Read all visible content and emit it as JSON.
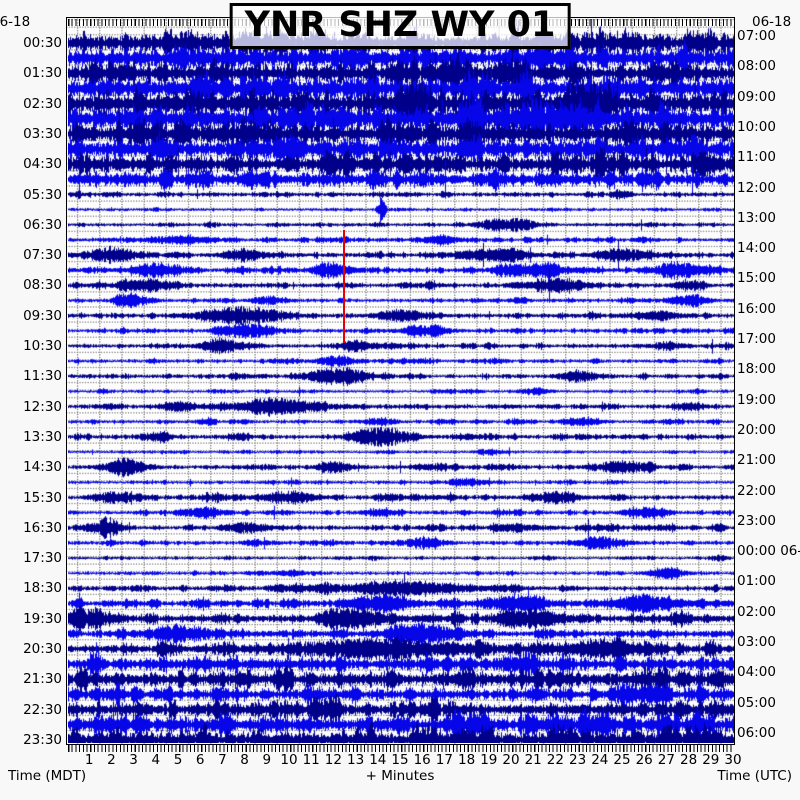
{
  "title": "YNR SHZ WY 01",
  "dates": {
    "top_left": "06-18",
    "top_right": "06-18"
  },
  "footer": {
    "left": "Time (MDT)",
    "center": "+ Minutes",
    "right": "Time (UTC)"
  },
  "left_time_labels": [
    "00:30",
    "01:30",
    "02:30",
    "03:30",
    "04:30",
    "05:30",
    "06:30",
    "07:30",
    "08:30",
    "09:30",
    "10:30",
    "11:30",
    "12:30",
    "13:30",
    "14:30",
    "15:30",
    "16:30",
    "17:30",
    "18:30",
    "19:30",
    "20:30",
    "21:30",
    "22:30",
    "23:30"
  ],
  "right_time_labels": [
    "07:00",
    "08:00",
    "09:00",
    "10:00",
    "11:00",
    "12:00",
    "13:00",
    "14:00",
    "15:00",
    "16:00",
    "17:00",
    "18:00",
    "19:00",
    "20:00",
    "21:00",
    "22:00",
    "23:00",
    "00:00 06-19",
    "01:00",
    "02:00",
    "03:00",
    "04:00",
    "05:00",
    "06:00"
  ],
  "minute_labels": [
    "1",
    "2",
    "3",
    "4",
    "5",
    "6",
    "7",
    "8",
    "9",
    "10",
    "11",
    "12",
    "13",
    "14",
    "15",
    "16",
    "17",
    "18",
    "19",
    "20",
    "21",
    "22",
    "23",
    "24",
    "25",
    "26",
    "27",
    "28",
    "29",
    "30"
  ],
  "colors": {
    "trace_dark": "#00008B",
    "trace_bright": "#0606E8",
    "event_marker": "#e60000",
    "grid_dots": "#9c9c9c"
  },
  "chart_data": {
    "type": "line",
    "subtype": "helicorder-seismogram",
    "station": "YNR SHZ WY 01",
    "minutes_per_line": 30,
    "x_axis": {
      "label": "+ Minutes",
      "range": [
        0,
        30
      ],
      "ticks_every_min": 1,
      "minor_ticks_sec": 10
    },
    "time_axis_left": {
      "label": "Time (MDT)",
      "start": "00:30",
      "end": "23:30",
      "date": "06-18"
    },
    "time_axis_right": {
      "label": "Time (UTC)",
      "start": "07:00",
      "end": "06:00",
      "rollover": "00:00 06-19"
    },
    "event_marker": {
      "minute": 12.45,
      "from_line": 13,
      "to_line": 20
    },
    "lines": [
      {
        "amp": 12,
        "bursts": []
      },
      {
        "amp": 13,
        "bursts": []
      },
      {
        "amp": 12,
        "bursts": []
      },
      {
        "amp": 13,
        "bursts": []
      },
      {
        "amp": 15,
        "bursts": []
      },
      {
        "amp": 15,
        "bursts": []
      },
      {
        "amp": 13,
        "bursts": []
      },
      {
        "amp": 12,
        "bursts": []
      },
      {
        "amp": 11,
        "bursts": []
      },
      {
        "amp": 9,
        "bursts": []
      },
      {
        "amp": 2.8,
        "bursts": []
      },
      {
        "amp": 1.8,
        "bursts": [
          [
            14.1,
            0.12,
            13
          ]
        ]
      },
      {
        "amp": 2.2,
        "bursts": [
          [
            19.3,
            0.6,
            6
          ],
          [
            20.5,
            0.4,
            5
          ]
        ]
      },
      {
        "amp": 2.6,
        "bursts": [
          [
            16.8,
            0.5,
            5
          ],
          [
            5,
            1,
            4
          ]
        ]
      },
      {
        "amp": 3.2,
        "bursts": [
          [
            2,
            0.8,
            7
          ],
          [
            8,
            0.7,
            6
          ],
          [
            19,
            1.2,
            5
          ],
          [
            25,
            0.8,
            6
          ]
        ]
      },
      {
        "amp": 3.6,
        "bursts": [
          [
            4,
            0.8,
            7
          ],
          [
            12,
            0.6,
            5
          ],
          [
            21,
            1,
            6
          ],
          [
            27.5,
            0.7,
            7
          ]
        ]
      },
      {
        "amp": 3.0,
        "bursts": [
          [
            3.5,
            0.7,
            6
          ],
          [
            22,
            1,
            7
          ],
          [
            28,
            0.5,
            5
          ]
        ]
      },
      {
        "amp": 2.6,
        "bursts": [
          [
            3,
            0.6,
            5
          ],
          [
            9,
            0.5,
            4
          ],
          [
            28,
            0.6,
            5
          ]
        ]
      },
      {
        "amp": 3.0,
        "bursts": [
          [
            7.8,
            1.4,
            8
          ],
          [
            15,
            0.8,
            6
          ],
          [
            26.5,
            0.6,
            5
          ]
        ]
      },
      {
        "amp": 2.6,
        "bursts": [
          [
            8,
            0.8,
            7
          ],
          [
            16,
            0.7,
            5
          ]
        ]
      },
      {
        "amp": 2.8,
        "bursts": [
          [
            7,
            0.8,
            6
          ],
          [
            13,
            0.6,
            5
          ],
          [
            27,
            0.5,
            4
          ]
        ]
      },
      {
        "amp": 2.2,
        "bursts": [
          [
            12,
            0.7,
            5
          ]
        ]
      },
      {
        "amp": 2.6,
        "bursts": [
          [
            12.2,
            0.9,
            8
          ],
          [
            23,
            0.6,
            5
          ]
        ]
      },
      {
        "amp": 1.8,
        "bursts": [
          [
            21,
            0.5,
            3
          ]
        ]
      },
      {
        "amp": 2.6,
        "bursts": [
          [
            9.5,
            1.6,
            7
          ],
          [
            5,
            0.6,
            5
          ]
        ]
      },
      {
        "amp": 2.2,
        "bursts": [
          [
            23,
            0.6,
            4
          ],
          [
            14,
            0.5,
            4
          ]
        ]
      },
      {
        "amp": 3.0,
        "bursts": [
          [
            14.2,
            0.9,
            9
          ],
          [
            4,
            0.5,
            4
          ]
        ]
      },
      {
        "amp": 1.8,
        "bursts": [
          [
            19,
            0.4,
            3
          ]
        ]
      },
      {
        "amp": 2.6,
        "bursts": [
          [
            2.6,
            0.7,
            7
          ],
          [
            12,
            0.6,
            5
          ],
          [
            25,
            0.8,
            6
          ]
        ]
      },
      {
        "amp": 2.2,
        "bursts": [
          [
            18,
            0.6,
            4
          ]
        ]
      },
      {
        "amp": 3.0,
        "bursts": [
          [
            2,
            0.6,
            5
          ],
          [
            10,
            0.8,
            6
          ],
          [
            22,
            0.7,
            5
          ]
        ]
      },
      {
        "amp": 2.6,
        "bursts": [
          [
            6,
            0.6,
            5
          ],
          [
            14,
            0.5,
            4
          ],
          [
            26,
            0.7,
            5
          ]
        ]
      },
      {
        "amp": 3.0,
        "bursts": [
          [
            1.7,
            0.5,
            9
          ],
          [
            8,
            0.6,
            5
          ],
          [
            20,
            0.6,
            4
          ]
        ]
      },
      {
        "amp": 2.6,
        "bursts": [
          [
            16,
            0.7,
            5
          ],
          [
            24,
            0.8,
            6
          ]
        ]
      },
      {
        "amp": 1.8,
        "bursts": []
      },
      {
        "amp": 2.2,
        "bursts": [
          [
            10,
            0.5,
            3
          ],
          [
            27,
            0.6,
            4
          ]
        ]
      },
      {
        "amp": 3.0,
        "bursts": [
          [
            15,
            2.5,
            6
          ]
        ]
      },
      {
        "amp": 4.5,
        "bursts": [
          [
            14,
            1,
            8
          ],
          [
            20,
            1,
            7
          ],
          [
            26,
            1.2,
            7
          ]
        ]
      },
      {
        "amp": 5.5,
        "bursts": [
          [
            0.8,
            0.8,
            9
          ],
          [
            13,
            1,
            8
          ],
          [
            21,
            1,
            7
          ]
        ]
      },
      {
        "amp": 5.0,
        "bursts": [
          [
            5,
            1,
            7
          ],
          [
            16,
            1.2,
            8
          ]
        ]
      },
      {
        "amp": 6.5,
        "bursts": [
          [
            14,
            2.5,
            9
          ],
          [
            24,
            1,
            8
          ]
        ]
      },
      {
        "amp": 9.0,
        "bursts": []
      },
      {
        "amp": 10.0,
        "bursts": []
      },
      {
        "amp": 7.5,
        "bursts": []
      },
      {
        "amp": 9.5,
        "bursts": []
      },
      {
        "amp": 10.5,
        "bursts": []
      },
      {
        "amp": 11.5,
        "bursts": []
      }
    ]
  }
}
